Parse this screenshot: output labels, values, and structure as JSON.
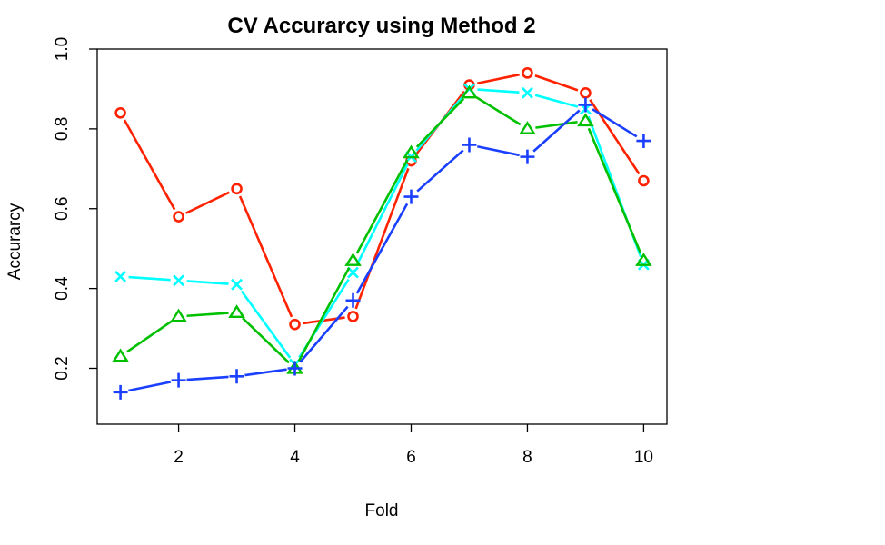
{
  "chart_data": {
    "type": "line",
    "title": "CV Accurarcy using Method 2",
    "xlabel": "Fold",
    "ylabel": "Accurarcy",
    "x": [
      1,
      2,
      3,
      4,
      5,
      6,
      7,
      8,
      9,
      10
    ],
    "xlim": [
      0.6,
      10.4
    ],
    "ylim": [
      0.06,
      1.0
    ],
    "xticks": [
      2,
      4,
      6,
      8,
      10
    ],
    "yticks": [
      0.2,
      0.4,
      0.6,
      0.8,
      1.0
    ],
    "xtick_labels": [
      "2",
      "4",
      "6",
      "8",
      "10"
    ],
    "ytick_labels": [
      "0.2",
      "0.4",
      "0.6",
      "0.8",
      "1.0"
    ],
    "grid": false,
    "legend": "none",
    "series": [
      {
        "color": "#ff2200",
        "marker": "circle-open",
        "values": [
          0.84,
          0.58,
          0.65,
          0.31,
          0.33,
          0.72,
          0.91,
          0.94,
          0.89,
          0.67
        ]
      },
      {
        "color": "#00ffff",
        "marker": "x",
        "values": [
          0.43,
          0.42,
          0.41,
          0.21,
          0.44,
          0.73,
          0.9,
          0.89,
          0.85,
          0.46
        ]
      },
      {
        "color": "#00c000",
        "marker": "triangle-open",
        "values": [
          0.23,
          0.33,
          0.34,
          0.2,
          0.47,
          0.74,
          0.89,
          0.8,
          0.82,
          0.47
        ]
      },
      {
        "color": "#1a3fff",
        "marker": "plus",
        "values": [
          0.14,
          0.17,
          0.18,
          0.2,
          0.37,
          0.63,
          0.76,
          0.73,
          0.86,
          0.77
        ]
      }
    ]
  }
}
